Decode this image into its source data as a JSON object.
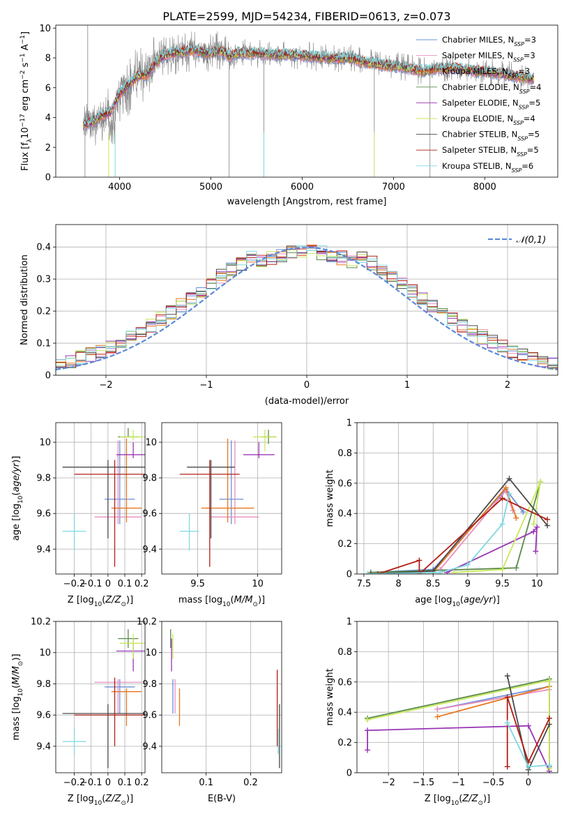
{
  "figure_title": "PLATE=2599, MJD=54234, FIBERID=0613, z=0.073",
  "colors": {
    "Chabrier MILES": "#6a8fd8",
    "Salpeter MILES": "#e88fc0",
    "Kroupa MILES": "#e8761e",
    "Chabrier ELODIE": "#5a8a4a",
    "Salpeter ELODIE": "#9a35b5",
    "Kroupa ELODIE": "#c8e85a",
    "Chabrier STELIB": "#4a4a4a",
    "Salpeter STELIB": "#b01e14",
    "Kroupa STELIB": "#7ed8e0",
    "data": "#808080",
    "normal": "#5b8ad8"
  },
  "chart_data": [
    {
      "type": "line",
      "title": "PLATE=2599, MJD=54234, FIBERID=0613, z=0.073",
      "xlabel": "wavelength [Angstrom, rest frame]",
      "ylabel": "Flux [f_λ10^-17 erg cm^-2 s^-1 A^-1]",
      "xlim": [
        3300,
        8800
      ],
      "ylim": [
        0,
        10.2
      ],
      "xticks": [
        4000,
        5000,
        6000,
        7000,
        8000
      ],
      "yticks": [
        0,
        2,
        4,
        6,
        8,
        10
      ],
      "grid": false,
      "legend_position": "right",
      "legend": [
        {
          "label": "Chabrier MILES, N",
          "sub": "SSP",
          "tail": "=3"
        },
        {
          "label": "Salpeter MILES, N",
          "sub": "SSP",
          "tail": "=3"
        },
        {
          "label": "Kroupa MILES, N",
          "sub": "SSP",
          "tail": "=3"
        },
        {
          "label": "Chabrier ELODIE, N",
          "sub": "SSP",
          "tail": "=4"
        },
        {
          "label": "Salpeter ELODIE, N",
          "sub": "SSP",
          "tail": "=5"
        },
        {
          "label": "Kroupa ELODIE, N",
          "sub": "SSP",
          "tail": "=4"
        },
        {
          "label": "Chabrier STELIB, N",
          "sub": "SSP",
          "tail": "=5"
        },
        {
          "label": "Salpeter STELIB, N",
          "sub": "SSP",
          "tail": "=5"
        },
        {
          "label": "Kroupa STELIB, N",
          "sub": "SSP",
          "tail": "=6"
        }
      ],
      "continuum": [
        [
          3600,
          3.5
        ],
        [
          3700,
          3.7
        ],
        [
          3800,
          4.1
        ],
        [
          3900,
          4.4
        ],
        [
          4000,
          5.6
        ],
        [
          4100,
          6.2
        ],
        [
          4200,
          6.8
        ],
        [
          4300,
          6.9
        ],
        [
          4400,
          7.7
        ],
        [
          4500,
          8.2
        ],
        [
          4600,
          8.3
        ],
        [
          4700,
          8.4
        ],
        [
          4800,
          8.5
        ],
        [
          4900,
          8.4
        ],
        [
          5000,
          8.3
        ],
        [
          5100,
          8.5
        ],
        [
          5200,
          8.1
        ],
        [
          5300,
          8.3
        ],
        [
          5500,
          8.3
        ],
        [
          5700,
          8.2
        ],
        [
          5900,
          8.2
        ],
        [
          6100,
          8.1
        ],
        [
          6300,
          8.0
        ],
        [
          6500,
          8.0
        ],
        [
          6700,
          7.7
        ],
        [
          6900,
          7.5
        ],
        [
          7100,
          7.4
        ],
        [
          7300,
          7.1
        ],
        [
          7500,
          7.3
        ],
        [
          7700,
          7.3
        ],
        [
          7900,
          7.1
        ],
        [
          8100,
          7.0
        ],
        [
          8300,
          6.8
        ],
        [
          8500,
          6.6
        ]
      ],
      "data_range": [
        3600,
        8540
      ]
    },
    {
      "type": "line",
      "xlabel": "(data-model)/error",
      "ylabel": "Normed distribution",
      "xlim": [
        -2.5,
        2.5
      ],
      "ylim": [
        0,
        0.47
      ],
      "xticks": [
        -2,
        -1,
        0,
        1,
        2
      ],
      "yticks": [
        0.0,
        0.1,
        0.2,
        0.3,
        0.4
      ],
      "grid": true,
      "legend_position": "top-right",
      "legend_label": "𝒩(0,1)",
      "bins": [
        -2.5,
        2.5,
        50
      ]
    },
    {
      "type": "scatter",
      "xlabel": "Z [log10(Z/Z⊙)]",
      "ylabel": "age  [log10(age/yr)]",
      "xlim": [
        -0.31,
        0.22
      ],
      "ylim": [
        9.26,
        10.11
      ],
      "xticks": [
        -0.2,
        -0.1,
        0.0,
        0.1,
        0.2
      ],
      "yticks": [
        9.4,
        9.6,
        9.8,
        10.0
      ],
      "grid": true,
      "points": [
        {
          "model": "Chabrier MILES",
          "x": 0.07,
          "xerr": 0.09,
          "y": 9.68,
          "yerr": [
            0.14,
            0.33
          ]
        },
        {
          "model": "Salpeter MILES",
          "x": 0.06,
          "xerr": 0.14,
          "y": 9.58,
          "yerr": [
            0.04,
            0.43
          ]
        },
        {
          "model": "Kroupa MILES",
          "x": 0.11,
          "xerr": 0.09,
          "y": 9.63,
          "yerr": [
            0.08,
            0.39
          ]
        },
        {
          "model": "Chabrier ELODIE",
          "x": 0.12,
          "xerr": 0.06,
          "y": 10.03,
          "yerr": [
            0.0,
            0.05
          ]
        },
        {
          "model": "Salpeter ELODIE",
          "x": 0.15,
          "xerr": 0.1,
          "y": 9.93,
          "yerr": [
            0.02,
            0.07
          ]
        },
        {
          "model": "Kroupa ELODIE",
          "x": 0.15,
          "xerr": 0.08,
          "y": 10.03,
          "yerr": [
            0.02,
            0.04
          ]
        },
        {
          "model": "Chabrier STELIB",
          "x": 0.0,
          "xerr": 0.27,
          "y": 9.86,
          "yerr": [
            0.4,
            0.04
          ]
        },
        {
          "model": "Salpeter STELIB",
          "x": 0.04,
          "xerr": 0.24,
          "y": 9.82,
          "yerr": [
            0.52,
            0.08
          ]
        },
        {
          "model": "Kroupa STELIB",
          "x": -0.2,
          "xerr": 0.07,
          "y": 9.5,
          "yerr": [
            0.11,
            0.1
          ]
        }
      ]
    },
    {
      "type": "scatter",
      "xlabel": "mass [log10(M/M⊙)]",
      "ylabel": "",
      "xlim": [
        9.2,
        10.2
      ],
      "ylim": [
        9.26,
        10.11
      ],
      "xticks": [
        9.5,
        10.0
      ],
      "yticks": [
        9.4,
        9.6,
        9.8,
        10.0
      ],
      "grid": true,
      "points": [
        {
          "model": "Chabrier MILES",
          "x": 9.78,
          "xerr": 0.1,
          "y": 9.68,
          "yerr": [
            0.14,
            0.33
          ]
        },
        {
          "model": "Salpeter MILES",
          "x": 9.81,
          "xerr": 0.2,
          "y": 9.58,
          "yerr": [
            0.04,
            0.43
          ]
        },
        {
          "model": "Kroupa MILES",
          "x": 9.75,
          "xerr": 0.22,
          "y": 9.63,
          "yerr": [
            0.08,
            0.39
          ]
        },
        {
          "model": "Chabrier ELODIE",
          "x": 10.09,
          "xerr": 0.06,
          "y": 10.03,
          "yerr": [
            0.04,
            0.04
          ]
        },
        {
          "model": "Salpeter ELODIE",
          "x": 10.01,
          "xerr": 0.13,
          "y": 9.93,
          "yerr": [
            0.02,
            0.07
          ]
        },
        {
          "model": "Kroupa ELODIE",
          "x": 10.06,
          "xerr": 0.1,
          "y": 10.03,
          "yerr": [
            0.08,
            0.04
          ]
        },
        {
          "model": "Chabrier STELIB",
          "x": 9.61,
          "xerr": 0.2,
          "y": 9.86,
          "yerr": [
            0.4,
            0.04
          ]
        },
        {
          "model": "Salpeter STELIB",
          "x": 9.6,
          "xerr": 0.25,
          "y": 9.82,
          "yerr": [
            0.52,
            0.08
          ]
        },
        {
          "model": "Kroupa STELIB",
          "x": 9.43,
          "xerr": 0.08,
          "y": 9.5,
          "yerr": [
            0.11,
            0.1
          ]
        }
      ]
    },
    {
      "type": "line",
      "xlabel": "age  [log10(age/yr)]",
      "ylabel": "mass weight",
      "xlim": [
        7.4,
        10.3
      ],
      "ylim": [
        0,
        1.0
      ],
      "xticks": [
        7.5,
        8.0,
        8.5,
        9.0,
        9.5,
        10.0
      ],
      "yticks": [
        0.0,
        0.2,
        0.4,
        0.6,
        0.8,
        1.0
      ],
      "grid": true,
      "series": [
        {
          "model": "Chabrier MILES",
          "points": [
            [
              7.6,
              0.01
            ],
            [
              8.5,
              0.03
            ],
            [
              9.55,
              0.56
            ],
            [
              9.8,
              0.41
            ]
          ]
        },
        {
          "model": "Salpeter MILES",
          "points": [
            [
              8.6,
              0.03
            ],
            [
              9.55,
              0.55
            ],
            [
              9.65,
              0.42
            ]
          ]
        },
        {
          "model": "Kroupa MILES",
          "points": [
            [
              8.5,
              0.01
            ],
            [
              9.55,
              0.57
            ],
            [
              9.7,
              0.37
            ]
          ]
        },
        {
          "model": "Chabrier ELODIE",
          "points": [
            [
              7.6,
              0.01
            ],
            [
              9.7,
              0.04
            ],
            [
              10.05,
              0.61
            ]
          ]
        },
        {
          "model": "Salpeter ELODIE",
          "points": [
            [
              8.7,
              0.01
            ],
            [
              9.95,
              0.28
            ],
            [
              10.0,
              0.31
            ],
            [
              9.98,
              0.15
            ]
          ]
        },
        {
          "model": "Kroupa ELODIE",
          "points": [
            [
              8.8,
              0.01
            ],
            [
              9.5,
              0.03
            ],
            [
              10.05,
              0.61
            ],
            [
              9.95,
              0.33
            ]
          ]
        },
        {
          "model": "Chabrier STELIB",
          "points": [
            [
              7.6,
              0.0
            ],
            [
              8.5,
              0.02
            ],
            [
              9.6,
              0.63
            ],
            [
              10.15,
              0.32
            ]
          ]
        },
        {
          "model": "Salpeter STELIB",
          "points": [
            [
              7.7,
              0.0
            ],
            [
              8.3,
              0.09
            ],
            [
              8.3,
              0.0
            ],
            [
              9.5,
              0.5
            ],
            [
              10.15,
              0.36
            ]
          ]
        },
        {
          "model": "Kroupa STELIB",
          "points": [
            [
              7.55,
              0.0
            ],
            [
              8.6,
              0.01
            ],
            [
              9.0,
              0.06
            ],
            [
              9.5,
              0.33
            ],
            [
              9.6,
              0.53
            ]
          ]
        }
      ]
    },
    {
      "type": "scatter",
      "xlabel": "Z [log10(Z/Z⊙)]",
      "ylabel": "mass [log10(M/M⊙)]",
      "xlim": [
        -0.31,
        0.22
      ],
      "ylim": [
        9.23,
        10.2
      ],
      "xticks": [
        -0.2,
        -0.1,
        0.0,
        0.1,
        0.2
      ],
      "yticks": [
        9.4,
        9.6,
        9.8,
        10.0,
        10.2
      ],
      "grid": true,
      "points": [
        {
          "model": "Chabrier MILES",
          "x": 0.07,
          "xerr": 0.09,
          "y": 9.78,
          "yerr": [
            0.17,
            0.05
          ]
        },
        {
          "model": "Salpeter MILES",
          "x": 0.06,
          "xerr": 0.14,
          "y": 9.81,
          "yerr": [
            0.2,
            0.02
          ]
        },
        {
          "model": "Kroupa MILES",
          "x": 0.11,
          "xerr": 0.09,
          "y": 9.75,
          "yerr": [
            0.22,
            0.02
          ]
        },
        {
          "model": "Chabrier ELODIE",
          "x": 0.12,
          "xerr": 0.06,
          "y": 10.09,
          "yerr": [
            0.06,
            0.06
          ]
        },
        {
          "model": "Salpeter ELODIE",
          "x": 0.15,
          "xerr": 0.1,
          "y": 10.01,
          "yerr": [
            0.13,
            0.08
          ]
        },
        {
          "model": "Kroupa ELODIE",
          "x": 0.15,
          "xerr": 0.08,
          "y": 10.06,
          "yerr": [
            0.1,
            0.06
          ]
        },
        {
          "model": "Chabrier STELIB",
          "x": 0.0,
          "xerr": 0.27,
          "y": 9.61,
          "yerr": [
            0.35,
            0.06
          ]
        },
        {
          "model": "Salpeter STELIB",
          "x": 0.04,
          "xerr": 0.24,
          "y": 9.6,
          "yerr": [
            0.2,
            0.24
          ]
        },
        {
          "model": "Kroupa STELIB",
          "x": -0.2,
          "xerr": 0.07,
          "y": 9.43,
          "yerr": [
            0.08,
            0.08
          ]
        }
      ]
    },
    {
      "type": "scatter",
      "xlabel": "E(B-V)",
      "ylabel": "",
      "xlim": [
        0.0,
        0.27
      ],
      "ylim": [
        9.23,
        10.2
      ],
      "xticks": [
        0.1,
        0.2
      ],
      "yticks": [
        9.4,
        9.6,
        9.8,
        10.0,
        10.2
      ],
      "grid": true,
      "points": [
        {
          "model": "Chabrier MILES",
          "x": 0.025,
          "y": 9.78,
          "yerr": [
            0.17,
            0.05
          ]
        },
        {
          "model": "Salpeter MILES",
          "x": 0.03,
          "y": 9.81,
          "yerr": [
            0.2,
            0.02
          ]
        },
        {
          "model": "Kroupa MILES",
          "x": 0.04,
          "y": 9.75,
          "yerr": [
            0.22,
            0.02
          ]
        },
        {
          "model": "Chabrier ELODIE",
          "x": 0.02,
          "y": 10.09,
          "yerr": [
            0.06,
            0.06
          ]
        },
        {
          "model": "Salpeter ELODIE",
          "x": 0.022,
          "y": 10.01,
          "yerr": [
            0.13,
            0.08
          ]
        },
        {
          "model": "Kroupa ELODIE",
          "x": 0.025,
          "y": 10.06,
          "yerr": [
            0.1,
            0.06
          ]
        },
        {
          "model": "Chabrier STELIB",
          "x": 0.265,
          "y": 9.61,
          "yerr": [
            0.35,
            0.06
          ]
        },
        {
          "model": "Salpeter STELIB",
          "x": 0.26,
          "y": 9.6,
          "yerr": [
            0.2,
            0.29
          ]
        },
        {
          "model": "Kroupa STELIB",
          "x": 0.262,
          "y": 9.43,
          "yerr": [
            0.08,
            0.08
          ]
        }
      ]
    },
    {
      "type": "line",
      "xlabel": "Z [log10(Z/Z⊙)]",
      "ylabel": "mass weight",
      "xlim": [
        -2.45,
        0.42
      ],
      "ylim": [
        0,
        1.0
      ],
      "xticks": [
        -2.0,
        -1.5,
        -1.0,
        -0.5,
        0.0
      ],
      "yticks": [
        0.0,
        0.2,
        0.4,
        0.6,
        0.8,
        1.0
      ],
      "grid": true,
      "series": [
        {
          "model": "Chabrier MILES",
          "points": [
            [
              -1.3,
              0.42
            ],
            [
              0.3,
              0.57
            ],
            [
              0.3,
              0.04
            ]
          ]
        },
        {
          "model": "Salpeter MILES",
          "points": [
            [
              -1.3,
              0.42
            ],
            [
              0.3,
              0.55
            ],
            [
              0.3,
              0.03
            ]
          ]
        },
        {
          "model": "Kroupa MILES",
          "points": [
            [
              -1.3,
              0.37
            ],
            [
              0.3,
              0.57
            ],
            [
              0.3,
              0.01
            ]
          ]
        },
        {
          "model": "Chabrier ELODIE",
          "points": [
            [
              -2.3,
              0.36
            ],
            [
              0.3,
              0.62
            ],
            [
              0.3,
              0.01
            ]
          ]
        },
        {
          "model": "Salpeter ELODIE",
          "points": [
            [
              -2.3,
              0.15
            ],
            [
              -2.3,
              0.28
            ],
            [
              0.0,
              0.31
            ],
            [
              0.3,
              0.01
            ]
          ]
        },
        {
          "model": "Kroupa ELODIE",
          "points": [
            [
              -2.3,
              0.35
            ],
            [
              0.3,
              0.61
            ],
            [
              0.3,
              0.03
            ]
          ]
        },
        {
          "model": "Chabrier STELIB",
          "points": [
            [
              -0.3,
              0.64
            ],
            [
              0.0,
              0.02
            ],
            [
              0.3,
              0.32
            ]
          ]
        },
        {
          "model": "Salpeter STELIB",
          "points": [
            [
              -0.3,
              0.04
            ],
            [
              -0.3,
              0.5
            ],
            [
              0.0,
              0.07
            ],
            [
              0.3,
              0.36
            ]
          ]
        },
        {
          "model": "Kroupa STELIB",
          "points": [
            [
              -0.3,
              0.33
            ],
            [
              0.0,
              0.04
            ],
            [
              0.3,
              0.05
            ]
          ]
        }
      ]
    }
  ]
}
